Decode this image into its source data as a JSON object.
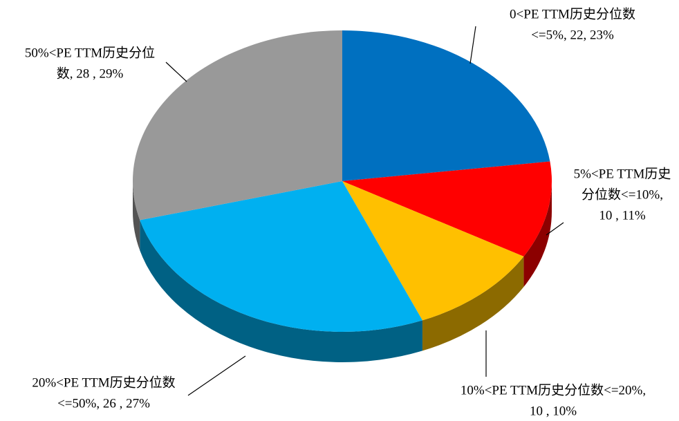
{
  "chart_data": {
    "type": "pie3d",
    "labels": [
      [
        "0<PE TTM历史分位数",
        "<=5%, 22, 23%"
      ],
      [
        "5%<PE TTM历史",
        "分位数<=10%,",
        "10 , 11%"
      ],
      [
        "10%<PE TTM历史分位数<=20%,",
        "10 , 10%"
      ],
      [
        "20%<PE TTM历史分位数",
        "<=50%, 26 , 27%"
      ],
      [
        "50%<PE TTM历史分位",
        "数, 28 , 29%"
      ]
    ],
    "values": [
      22,
      10,
      10,
      26,
      28
    ],
    "colors": [
      "#0070c0",
      "#ff0000",
      "#ffc000",
      "#00b0f0",
      "#999999"
    ]
  }
}
